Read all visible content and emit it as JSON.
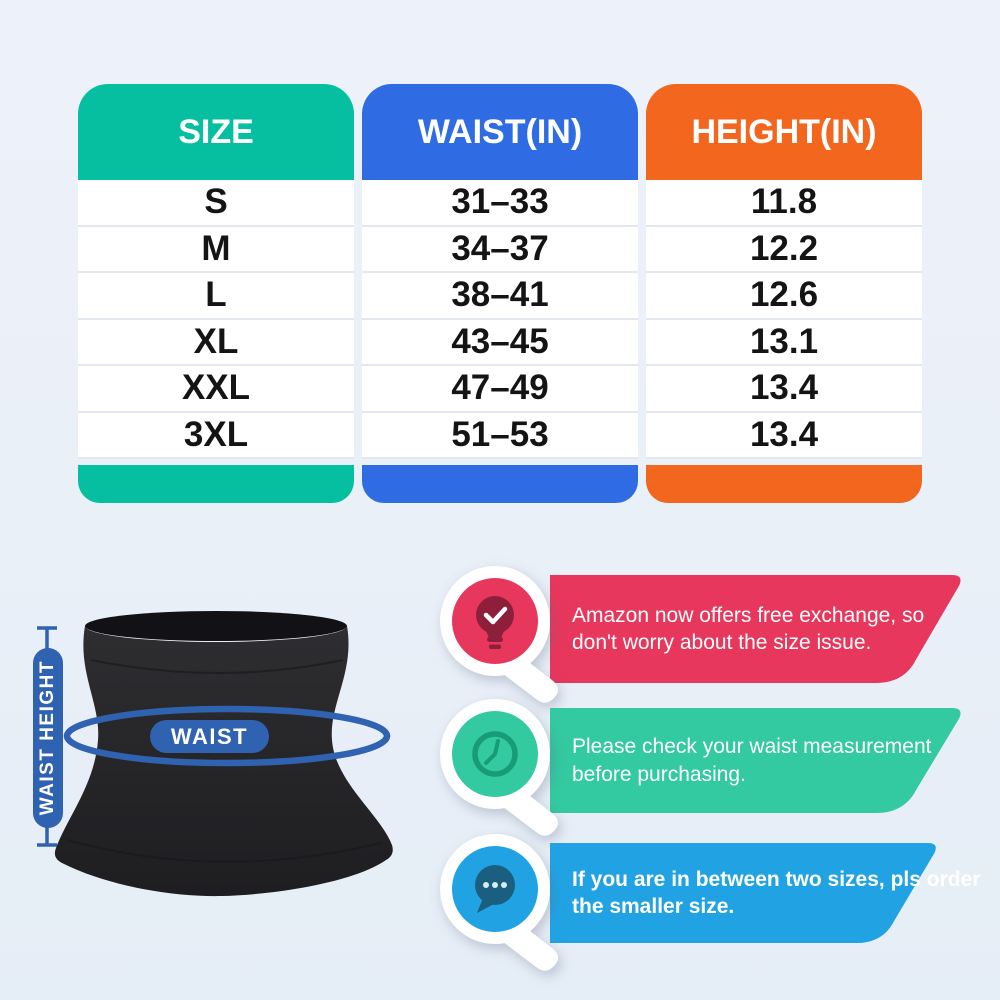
{
  "page": {
    "background_color": "#EAF0F8",
    "title": "Waist trainer size guide infographic"
  },
  "size_table": {
    "columns": [
      {
        "id": "size",
        "label": "SIZE",
        "color": "#05BFA0",
        "values": [
          "S",
          "M",
          "L",
          "XL",
          "XXL",
          "3XL"
        ]
      },
      {
        "id": "waist",
        "label": "WAIST(IN)",
        "color": "#2F6CE3",
        "values": [
          "31–33",
          "34–37",
          "38–41",
          "43–45",
          "47–49",
          "51–53"
        ]
      },
      {
        "id": "height",
        "label": "HEIGHT(IN)",
        "color": "#F2661E",
        "values": [
          "11.8",
          "12.2",
          "12.6",
          "13.1",
          "13.4",
          "13.4"
        ]
      }
    ]
  },
  "product": {
    "waist_label": "WAIST",
    "height_label": "WAIST HEIGHT",
    "accent_color": "#2F62B1",
    "garment_color": "#242427"
  },
  "callouts": [
    {
      "icon": "lightbulb-check-icon",
      "banner_color": "#E8375C",
      "glyph_color": "#8E1F3B",
      "lines": [
        "Amazon now offers free exchange, so",
        "don't worry about the size issue."
      ]
    },
    {
      "icon": "clock-icon",
      "banner_color": "#33C9A1",
      "glyph_color": "#179C77",
      "lines": [
        "Please check your waist measurement",
        "before purchasing."
      ]
    },
    {
      "icon": "chat-dots-icon",
      "banner_color": "#21A3E3",
      "glyph_color": "#1B5F80",
      "lines": [
        "If you are in between two sizes, pls order",
        "the smaller size."
      ]
    }
  ]
}
